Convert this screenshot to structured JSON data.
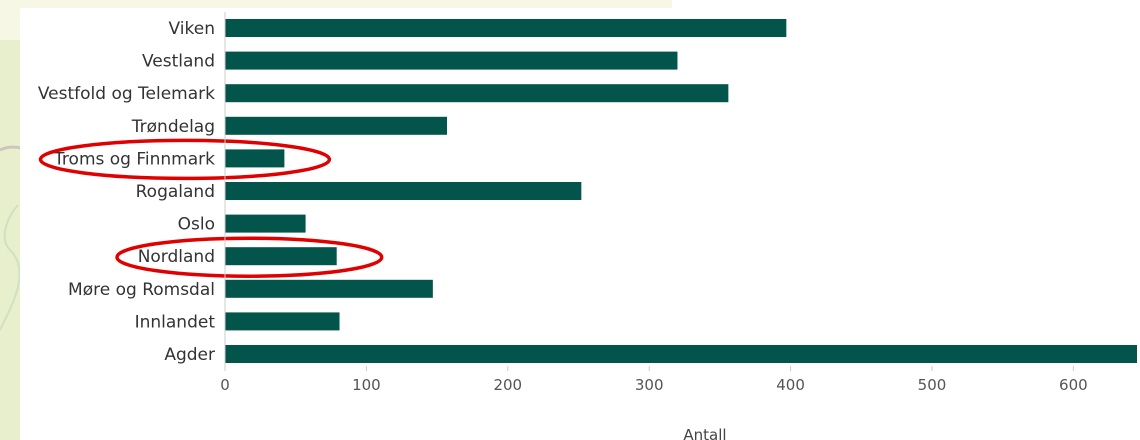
{
  "chart_data": {
    "type": "bar",
    "orientation": "horizontal",
    "title": "",
    "xlabel": "Antall",
    "ylabel": "",
    "categories": [
      "Viken",
      "Vestland",
      "Vestfold og Telemark",
      "Trøndelag",
      "Troms og Finnmark",
      "Rogaland",
      "Oslo",
      "Nordland",
      "Møre og Romsdal",
      "Innlandet",
      "Agder"
    ],
    "values": [
      397,
      320,
      356,
      157,
      42,
      252,
      57,
      79,
      147,
      81,
      645
    ],
    "xlim": [
      0,
      645
    ],
    "xticks": [
      0,
      100,
      200,
      300,
      400,
      500,
      600
    ],
    "grid": false,
    "legend": "none",
    "highlighted_categories": [
      "Troms og Finnmark",
      "Nordland"
    ],
    "bar_color": "#03544a",
    "highlight_color": "#e00000"
  }
}
